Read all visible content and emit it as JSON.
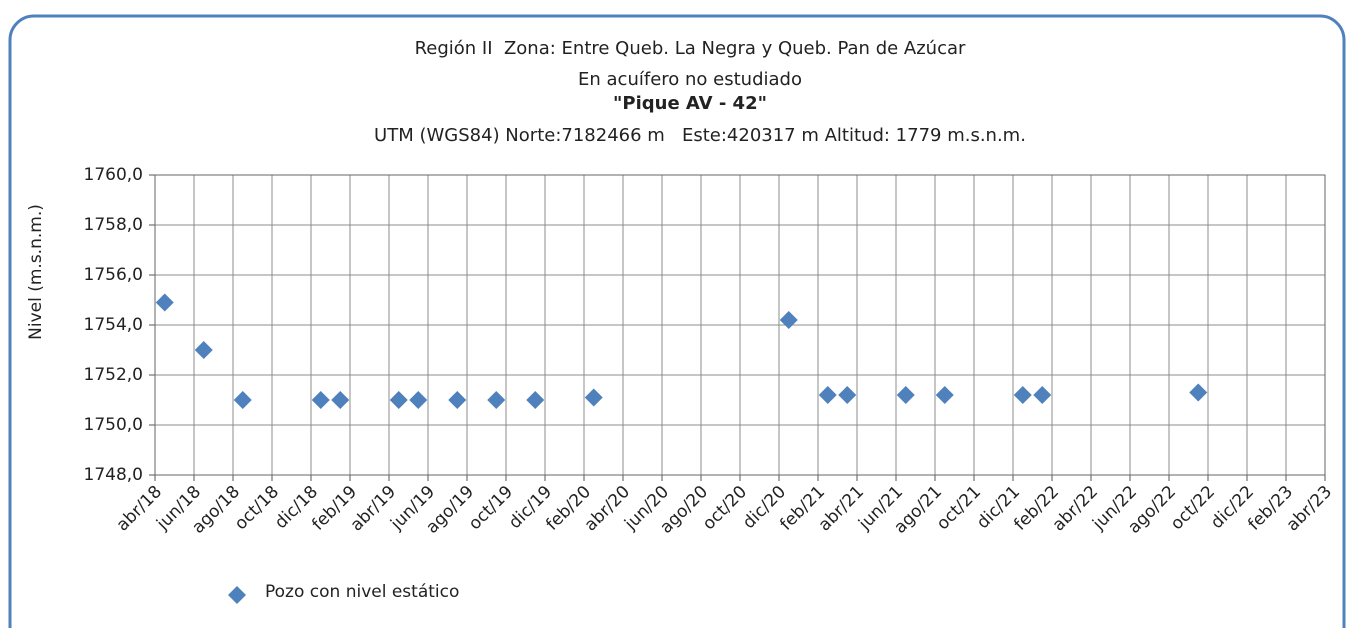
{
  "chart_data": {
    "type": "scatter",
    "title": "Región II  Zona: Entre Queb. La Negra y Queb. Pan de Azúcar",
    "subtitle": "En acuífero no estudiado",
    "well_name": "\"Pique AV - 42\"",
    "coordinates": "UTM (WGS84) Norte:7182466 m   Este:420317 m Altitud: 1779 m.s.n.m.",
    "y_label": "Nivel (m.s.n.m.)",
    "series": [
      {
        "name": "Pozo con nivel estático",
        "color": "#4f81bd",
        "x": [
          "2018-04",
          "2018-06",
          "2018-08",
          "2018-12",
          "2019-01",
          "2019-04",
          "2019-05",
          "2019-07",
          "2019-09",
          "2019-11",
          "2020-02",
          "2020-12",
          "2021-02",
          "2021-03",
          "2021-06",
          "2021-08",
          "2021-12",
          "2022-01",
          "2022-09"
        ],
        "values": [
          1754.9,
          1753.0,
          1751.0,
          1751.0,
          1751.0,
          1751.0,
          1751.0,
          1751.0,
          1751.0,
          1751.0,
          1751.1,
          1754.2,
          1751.2,
          1751.2,
          1751.2,
          1751.2,
          1751.2,
          1751.2,
          1751.3
        ]
      }
    ],
    "xlim": [
      "2018-04",
      "2023-04"
    ],
    "xticks": [
      {
        "value": "2018-04",
        "label": "abr/18"
      },
      {
        "value": "2018-06",
        "label": "jun/18"
      },
      {
        "value": "2018-08",
        "label": "ago/18"
      },
      {
        "value": "2018-10",
        "label": "oct/18"
      },
      {
        "value": "2018-12",
        "label": "dic/18"
      },
      {
        "value": "2019-02",
        "label": "feb/19"
      },
      {
        "value": "2019-04",
        "label": "abr/19"
      },
      {
        "value": "2019-06",
        "label": "jun/19"
      },
      {
        "value": "2019-08",
        "label": "ago/19"
      },
      {
        "value": "2019-10",
        "label": "oct/19"
      },
      {
        "value": "2019-12",
        "label": "dic/19"
      },
      {
        "value": "2020-02",
        "label": "feb/20"
      },
      {
        "value": "2020-04",
        "label": "abr/20"
      },
      {
        "value": "2020-06",
        "label": "jun/20"
      },
      {
        "value": "2020-08",
        "label": "ago/20"
      },
      {
        "value": "2020-10",
        "label": "oct/20"
      },
      {
        "value": "2020-12",
        "label": "dic/20"
      },
      {
        "value": "2021-02",
        "label": "feb/21"
      },
      {
        "value": "2021-04",
        "label": "abr/21"
      },
      {
        "value": "2021-06",
        "label": "jun/21"
      },
      {
        "value": "2021-08",
        "label": "ago/21"
      },
      {
        "value": "2021-10",
        "label": "oct/21"
      },
      {
        "value": "2021-12",
        "label": "dic/21"
      },
      {
        "value": "2022-02",
        "label": "feb/22"
      },
      {
        "value": "2022-04",
        "label": "abr/22"
      },
      {
        "value": "2022-06",
        "label": "jun/22"
      },
      {
        "value": "2022-08",
        "label": "ago/22"
      },
      {
        "value": "2022-10",
        "label": "oct/22"
      },
      {
        "value": "2022-12",
        "label": "dic/22"
      },
      {
        "value": "2023-02",
        "label": "feb/23"
      },
      {
        "value": "2023-04",
        "label": "abr/23"
      }
    ],
    "ylim": [
      1748,
      1760
    ],
    "yticks": [
      {
        "value": 1748,
        "label": "1748,0"
      },
      {
        "value": 1750,
        "label": "1750,0"
      },
      {
        "value": 1752,
        "label": "1752,0"
      },
      {
        "value": 1754,
        "label": "1754,0"
      },
      {
        "value": 1756,
        "label": "1756,0"
      },
      {
        "value": 1758,
        "label": "1758,0"
      },
      {
        "value": 1760,
        "label": "1760,0"
      }
    ],
    "grid": true,
    "legend": "bottom-left"
  }
}
